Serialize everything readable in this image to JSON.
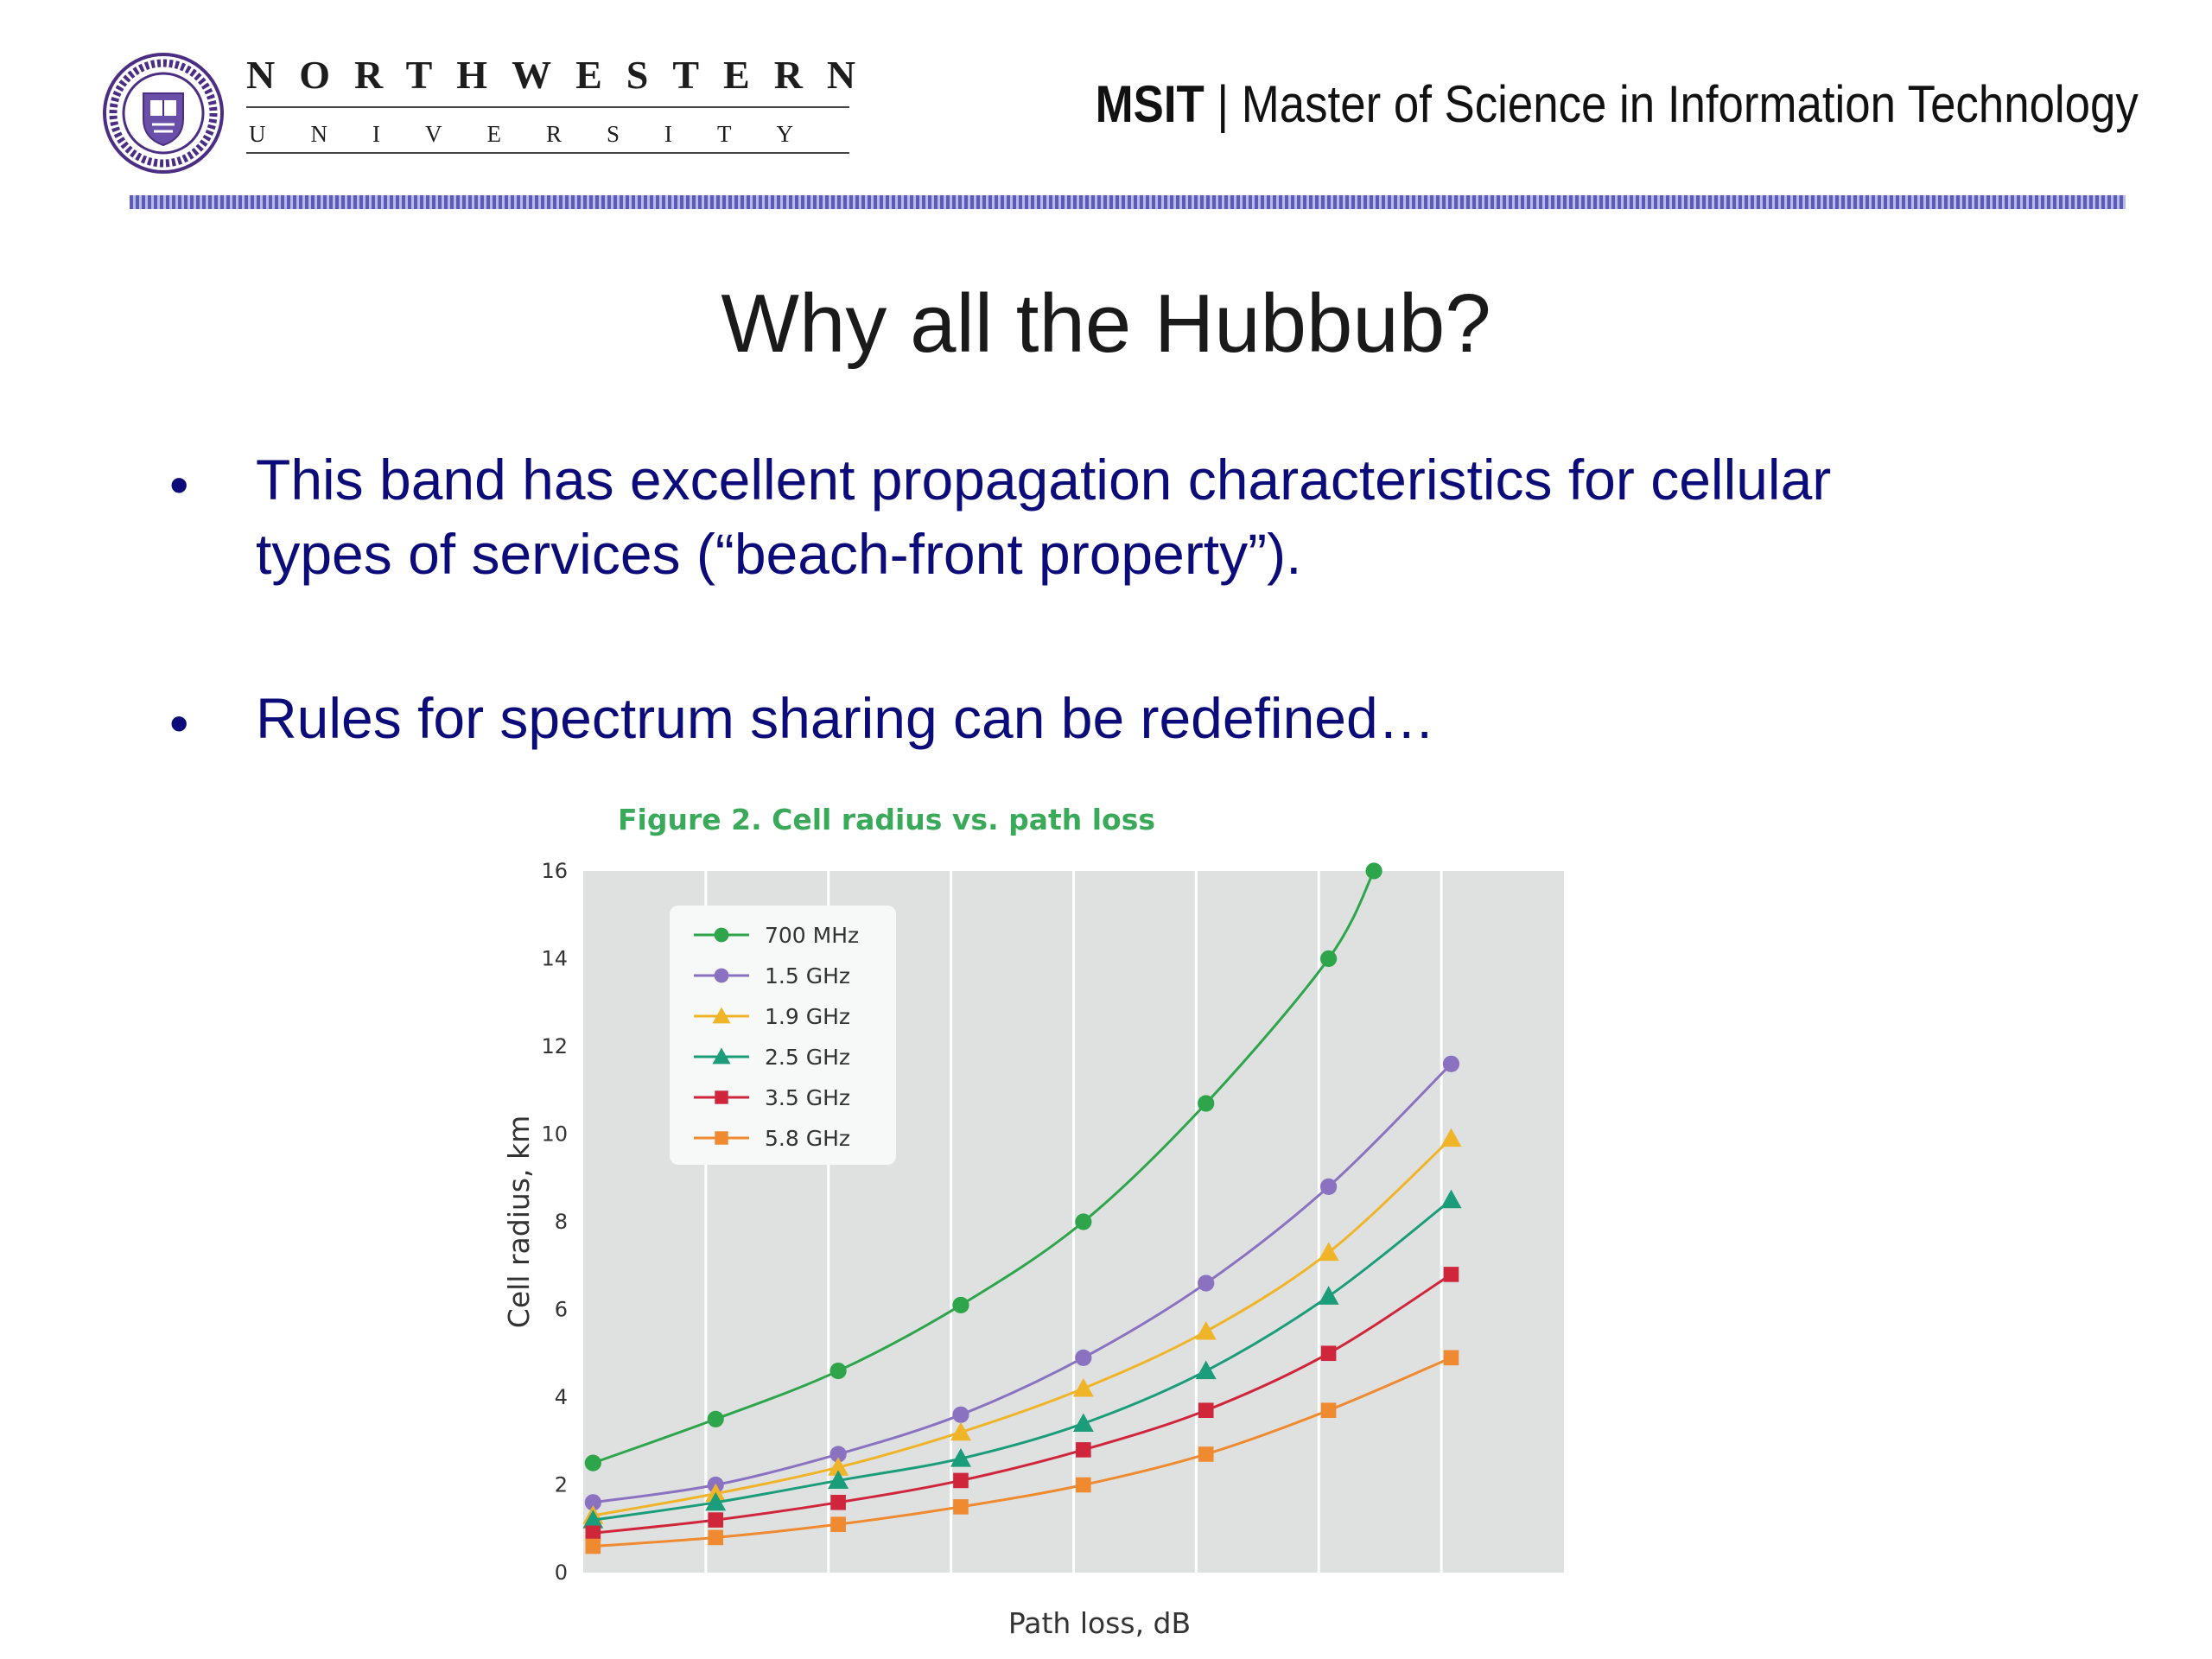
{
  "header": {
    "university_word": "NORTHWESTERN",
    "university_sub": "UNIVERSITY",
    "program_abbr": "MSIT",
    "separator": "|",
    "program_name": "Master of Science in Information Technology"
  },
  "slide": {
    "title": "Why all the Hubbub?",
    "bullet_symbol": "•",
    "bullets": [
      {
        "line1": "This band has excellent propagation characteristics for cellular",
        "line2": "types of services (“beach-front property”)."
      },
      {
        "line1": "Rules for spectrum sharing can be redefined…"
      }
    ]
  },
  "colors": {
    "brand_purple": "#4b2e83",
    "bullet_text": "#0b0b7a",
    "figure_title": "#3aaa5a",
    "plot_bg": "#dfe1e1"
  },
  "chart_data": {
    "type": "line",
    "title": "Figure 2. Cell radius vs. path loss",
    "xlabel": "Path loss, dB",
    "ylabel": "Cell radius, km",
    "ylim": [
      0,
      16
    ],
    "yticks": [
      0,
      2,
      4,
      6,
      8,
      10,
      12,
      14,
      16
    ],
    "x_index": [
      1,
      2,
      3,
      4,
      5,
      6,
      7,
      8
    ],
    "grid": true,
    "legend_position": "top-left",
    "series": [
      {
        "name": "700 MHz",
        "marker": "circle",
        "color": "#2ea54a",
        "values": [
          2.5,
          3.5,
          4.6,
          6.1,
          8.0,
          10.7,
          14.0,
          16.0
        ],
        "x_last": 7.37
      },
      {
        "name": "1.5 GHz",
        "marker": "circle",
        "color": "#8a72c0",
        "values": [
          1.6,
          2.0,
          2.7,
          3.6,
          4.9,
          6.6,
          8.8,
          11.6
        ]
      },
      {
        "name": "1.9 GHz",
        "marker": "triangle",
        "color": "#f0b428",
        "values": [
          1.3,
          1.8,
          2.4,
          3.2,
          4.2,
          5.5,
          7.3,
          9.9
        ]
      },
      {
        "name": "2.5 GHz",
        "marker": "triangle",
        "color": "#1b9c7a",
        "values": [
          1.2,
          1.6,
          2.1,
          2.6,
          3.4,
          4.6,
          6.3,
          8.5
        ]
      },
      {
        "name": "3.5 GHz",
        "marker": "square",
        "color": "#d0263c",
        "values": [
          0.9,
          1.2,
          1.6,
          2.1,
          2.8,
          3.7,
          5.0,
          6.8
        ]
      },
      {
        "name": "5.8 GHz",
        "marker": "square",
        "color": "#f08a30",
        "values": [
          0.6,
          0.8,
          1.1,
          1.5,
          2.0,
          2.7,
          3.7,
          4.9
        ]
      }
    ]
  }
}
